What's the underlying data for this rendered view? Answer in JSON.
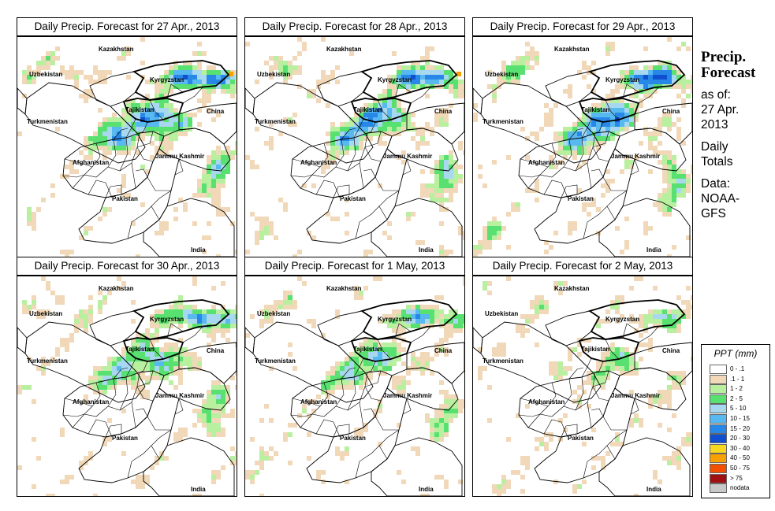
{
  "panels": [
    {
      "title": "Daily Precip. Forecast for  27 Apr., 2013",
      "seed": 3,
      "cover": 1.15
    },
    {
      "title": "Daily Precip. Forecast for  28 Apr., 2013",
      "seed": 7,
      "cover": 1.05
    },
    {
      "title": "Daily Precip. Forecast for  29 Apr., 2013",
      "seed": 11,
      "cover": 1.1
    },
    {
      "title": "Daily Precip. Forecast for  30 Apr., 2013",
      "seed": 13,
      "cover": 0.95
    },
    {
      "title": "Daily Precip. Forecast for  1 May, 2013",
      "seed": 17,
      "cover": 0.8
    },
    {
      "title": "Daily Precip. Forecast for  2 May, 2013",
      "seed": 19,
      "cover": 0.55
    }
  ],
  "map_labels": {
    "kazakhstan": "Kazakhstan",
    "uzbekistan": "Uzbekistan",
    "kyrgyzstan": "Kyrgyzstan",
    "tajikistan": "Tajikistan",
    "turkmenistan": "Turkmenistan",
    "china": "China",
    "afghanistan": "Afghanistan",
    "jammu_kashmir": "Jammu Kashmir",
    "pakistan": "Pakistan",
    "india": "India"
  },
  "sidebar": {
    "title_line1": "Precip.",
    "title_line2": "Forecast",
    "asof_line1": "as of:",
    "asof_line2": "27 Apr.",
    "asof_line3": "2013",
    "daily_line1": "Daily",
    "daily_line2": "Totals",
    "data_line1": "Data:",
    "data_line2": "NOAA-",
    "data_line3": "GFS"
  },
  "legend": {
    "title": "PPT (mm)",
    "items": [
      {
        "label": "0 - .1",
        "color": "#ffffff"
      },
      {
        "label": ".1 - 1",
        "color": "#f0d8b8"
      },
      {
        "label": "1 - 2",
        "color": "#b8f0a0"
      },
      {
        "label": "2 - 5",
        "color": "#58e070"
      },
      {
        "label": "5 - 10",
        "color": "#a8d8f0"
      },
      {
        "label": "10 - 15",
        "color": "#58b8f0"
      },
      {
        "label": "15 - 20",
        "color": "#2888e8"
      },
      {
        "label": "20 - 30",
        "color": "#1050d0"
      },
      {
        "label": "30 - 40",
        "color": "#f8d820"
      },
      {
        "label": "40 - 50",
        "color": "#f8a000"
      },
      {
        "label": "50 - 75",
        "color": "#f05000"
      },
      {
        "label": "> 75",
        "color": "#a01010"
      },
      {
        "label": "nodata",
        "color": "#c8c8c8"
      }
    ]
  }
}
